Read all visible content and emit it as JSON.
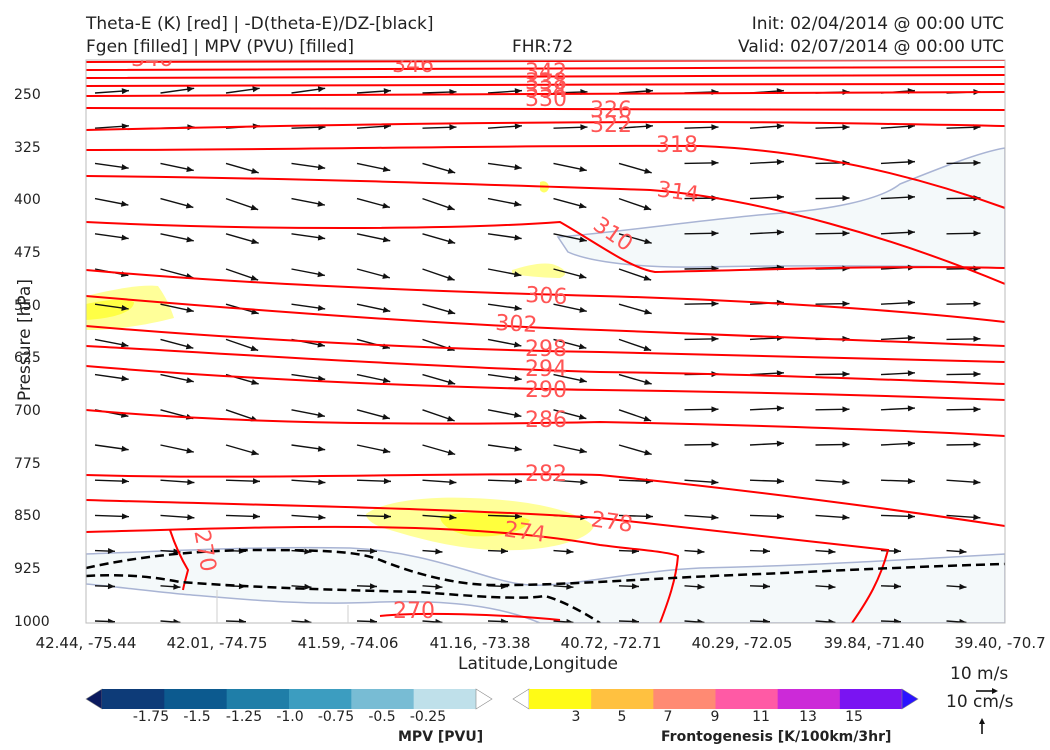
{
  "header": {
    "line1_left": "Theta-E (K) [red] | -D(theta-E)/DZ-[black]",
    "line2_left": "Fgen [filled] | MPV (PVU) [filled]",
    "fhr": "FHR:72",
    "init": "Init: 02/04/2014 @ 00:00 UTC",
    "valid": "Valid: 02/07/2014 @ 00:00 UTC"
  },
  "chart_data": {
    "type": "cross-section",
    "ylabel": "Pressure [hPa]",
    "xlabel": "Latitude,Longitude",
    "y_ticks": [
      250,
      325,
      400,
      475,
      550,
      625,
      700,
      775,
      850,
      925,
      1000
    ],
    "y_range": [
      1000,
      175
    ],
    "x_ticks": [
      "42.44, -75.44",
      "42.01, -74.75",
      "41.59, -74.06",
      "41.16, -73.38",
      "40.72, -72.71",
      "40.29, -72.05",
      "39.84, -71.40",
      "39.40, -70.7"
    ],
    "theta_e_contours": [
      {
        "value": 346,
        "label": "346"
      },
      {
        "value": 342,
        "label": "342"
      },
      {
        "value": 338,
        "label": "338"
      },
      {
        "value": 334,
        "label": "334"
      },
      {
        "value": 330,
        "label": "330"
      },
      {
        "value": 326,
        "label": "326"
      },
      {
        "value": 322,
        "label": "322"
      },
      {
        "value": 318,
        "label": "318"
      },
      {
        "value": 314,
        "label": "314"
      },
      {
        "value": 310,
        "label": "310"
      },
      {
        "value": 306,
        "label": "306"
      },
      {
        "value": 302,
        "label": "302"
      },
      {
        "value": 298,
        "label": "298"
      },
      {
        "value": 294,
        "label": "294"
      },
      {
        "value": 290,
        "label": "290"
      },
      {
        "value": 286,
        "label": "286"
      },
      {
        "value": 282,
        "label": "282"
      },
      {
        "value": 278,
        "label": "278"
      },
      {
        "value": 274,
        "label": "274"
      },
      {
        "value": 270,
        "label": "270"
      }
    ],
    "colors": {
      "theta_e": "#ff0000",
      "theta_e_label": "#ff5555",
      "dthetae_dz": "#000000",
      "mpv_region": "#f4f9fa",
      "mpv_outline": "#a9b4d4",
      "fgen_light": "#ffff99",
      "fgen_mid": "#ffff00",
      "wind_arrow": "#111111"
    }
  },
  "colorbars": {
    "mpv": {
      "title": "MPV [PVU]",
      "labels": [
        "-1.75",
        "-1.5",
        "-1.25",
        "-1.0",
        "-0.75",
        "-0.5",
        "-0.25"
      ],
      "colors": [
        "#0b1a5e",
        "#0d3b78",
        "#0c5a8f",
        "#1f7ea8",
        "#3c9dc0",
        "#78bcd4",
        "#bfe0ea",
        "#ffffff"
      ]
    },
    "fgen": {
      "title": "Frontogenesis [K/100km/3hr]",
      "labels": [
        "3",
        "5",
        "7",
        "9",
        "11",
        "13",
        "15"
      ],
      "colors": [
        "#ffffff",
        "#fffb16",
        "#ffc140",
        "#ff8a73",
        "#ff5aa5",
        "#cc2ad8",
        "#7a14f2",
        "#2b13ff"
      ]
    }
  },
  "wind_reference": {
    "horizontal": "10 m/s",
    "vertical": "10 cm/s"
  }
}
